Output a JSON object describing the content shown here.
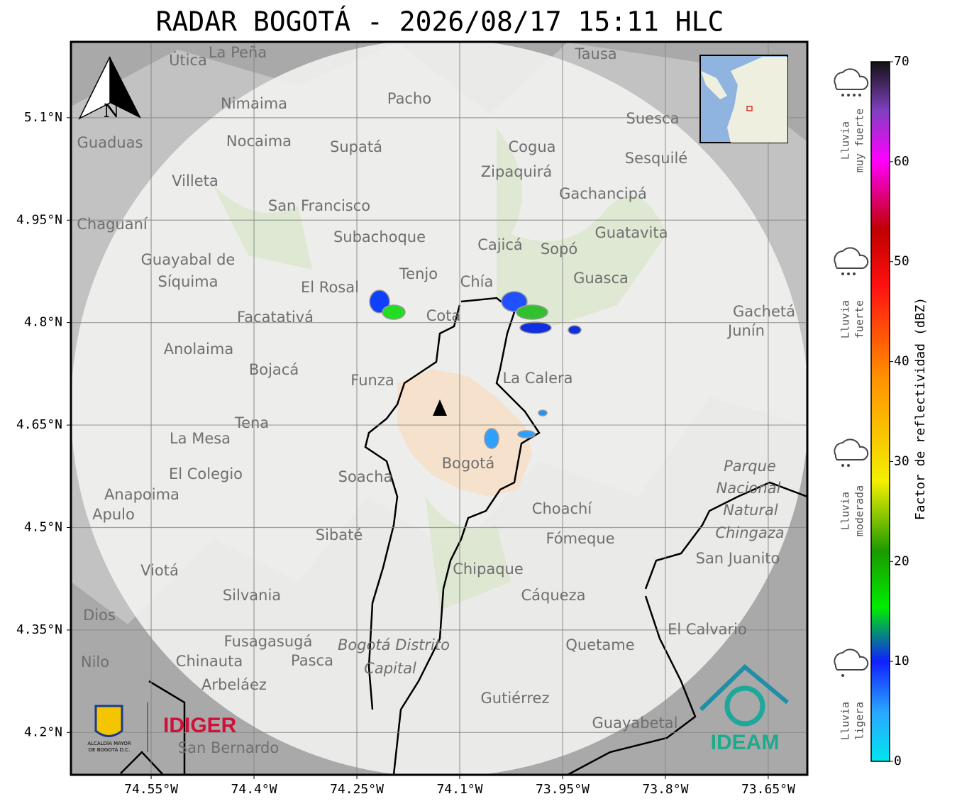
{
  "map": {
    "title": "RADAR BOGOTÁ - 2026/08/17 15:11 HLC",
    "xlim": [
      -74.667,
      -73.593
    ],
    "ylim": [
      4.138,
      5.211
    ],
    "xticks": [
      {
        "value": -74.55,
        "label": "74.55°W"
      },
      {
        "value": -74.4,
        "label": "74.4°W"
      },
      {
        "value": -74.25,
        "label": "74.25°W"
      },
      {
        "value": -74.1,
        "label": "74.1°W"
      },
      {
        "value": -73.95,
        "label": "73.95°W"
      },
      {
        "value": -73.8,
        "label": "73.8°W"
      },
      {
        "value": -73.65,
        "label": "73.65°W"
      }
    ],
    "yticks": [
      {
        "value": 5.1,
        "label": "5.1°N"
      },
      {
        "value": 4.95,
        "label": "4.95°N"
      },
      {
        "value": 4.8,
        "label": "4.8°N"
      },
      {
        "value": 4.65,
        "label": "4.65°N"
      },
      {
        "value": 4.5,
        "label": "4.5°N"
      },
      {
        "value": 4.35,
        "label": "4.35°N"
      },
      {
        "value": 4.2,
        "label": "4.2°N"
      }
    ],
    "colorbar": {
      "label": "Factor de reflectividad (dBZ)",
      "lim": [
        0,
        70
      ],
      "ticks": [
        0,
        10,
        20,
        30,
        40,
        50,
        60,
        70
      ]
    },
    "legend": [
      [
        "Lluvia",
        "muy fuerte"
      ],
      [
        "Lluvia",
        "fuerte"
      ],
      [
        "Lluvia",
        "moderada"
      ],
      [
        "Lluvia",
        "ligera"
      ]
    ],
    "compass": "N",
    "logos": {
      "alcaldia": [
        "ALCALDÍA MAYOR",
        "DE BOGOTÁ D.C."
      ],
      "idiger": "IDIGER",
      "ideam": "IDEAM"
    },
    "places": [
      "La Peña",
      "Útica",
      "Tausa",
      "Pacho",
      "Nimaima",
      "Suesca",
      "Guaduas",
      "Nocaima",
      "Supatá",
      "Cogua",
      "Sesquilé",
      "Zipaquirá",
      "Villeta",
      "Gachancipá",
      "San Francisco",
      "Chaguaní",
      "Guatavita",
      "Subachoque",
      "Cajicá",
      "Sopó",
      "Guayabal de",
      "Síquima",
      "Tenjo",
      "Chía",
      "Guasca",
      "El Rosal",
      "Cota",
      "Facatativá",
      "Gachetá",
      "Junín",
      "Anolaima",
      "Bojacá",
      "Funza",
      "La Calera",
      "Tena",
      "La Mesa",
      "Bogotá",
      "Soacha",
      "El Colegio",
      "Anapoima",
      "Apulo",
      "Choachí",
      "Sibaté",
      "Fómeque",
      "San Juanito",
      "Viotá",
      "Chipaque",
      "Silvania",
      "Cáqueza",
      "Dios",
      "El Calvario",
      "Fusagasugá",
      "Quetame",
      "Nilo",
      "Chinauta",
      "Pasca",
      "Arbeláez",
      "Gutiérrez",
      "Guayabetal",
      "San Bernardo",
      "Parque",
      "Nacional",
      "Natural",
      "Chingaza",
      "Bogotá Distrito",
      "Capital"
    ]
  }
}
